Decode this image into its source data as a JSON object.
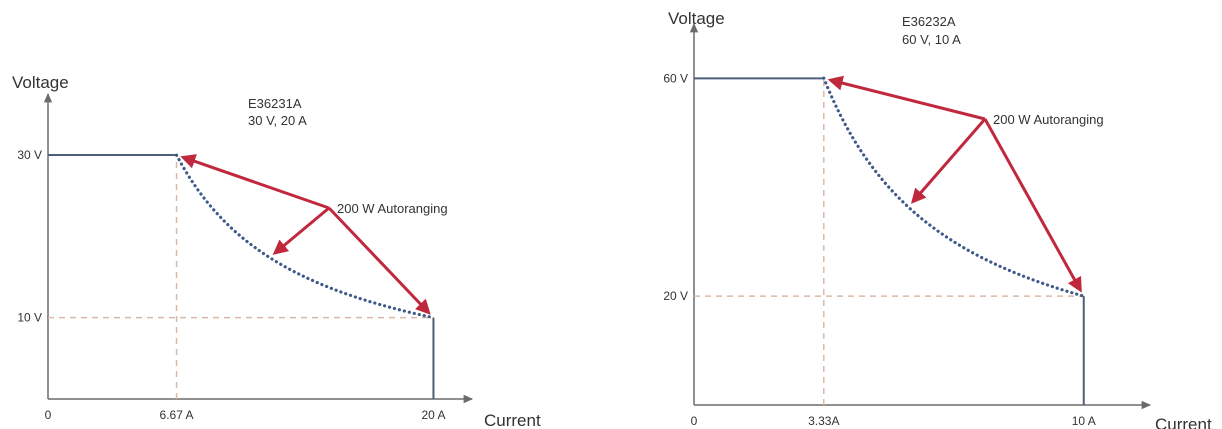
{
  "colors": {
    "axis": "#6b6b6b",
    "curve_solid": "#4f5d78",
    "curve_dotted": "#3f5a8a",
    "guide": "#d9b9a6",
    "arrow": "#c0283d",
    "text": "#333333"
  },
  "chart_data": [
    {
      "type": "line",
      "model": "E36231A",
      "rating": "30 V, 20 A",
      "xlabel": "Current",
      "ylabel": "Voltage",
      "annotation": "200 W Autoranging",
      "xlim": [
        0,
        22
      ],
      "ylim": [
        0,
        37.5
      ],
      "xticks": [
        {
          "value": 0,
          "label": "0"
        },
        {
          "value": 6.67,
          "label": "6.67 A"
        },
        {
          "value": 20,
          "label": "20 A"
        }
      ],
      "yticks": [
        {
          "value": 30,
          "label": "30 V"
        },
        {
          "value": 10,
          "label": "10 V"
        }
      ],
      "power_watts": 200,
      "points": [
        {
          "x": 0,
          "y": 30
        },
        {
          "x": 6.67,
          "y": 30
        },
        {
          "x": 20,
          "y": 10
        },
        {
          "x": 20,
          "y": 0
        }
      ],
      "guides": [
        {
          "from": [
            6.67,
            0
          ],
          "to": [
            6.67,
            30
          ]
        },
        {
          "from": [
            0,
            10
          ],
          "to": [
            20,
            10
          ]
        }
      ],
      "arrow_targets": [
        {
          "x": 6.67,
          "y": 30
        },
        {
          "x": 11.5,
          "y": 17.4
        },
        {
          "x": 20,
          "y": 10
        }
      ]
    },
    {
      "type": "line",
      "model": "E36232A",
      "rating": "60 V, 10 A",
      "xlabel": "Current",
      "ylabel": "Voltage",
      "annotation": "200 W Autoranging",
      "xlim": [
        0,
        11.7
      ],
      "ylim": [
        0,
        70
      ],
      "xticks": [
        {
          "value": 0,
          "label": "0"
        },
        {
          "value": 3.33,
          "label": "3.33A"
        },
        {
          "value": 10,
          "label": "10 A"
        }
      ],
      "yticks": [
        {
          "value": 60,
          "label": "60 V"
        },
        {
          "value": 20,
          "label": "20 V"
        }
      ],
      "power_watts": 200,
      "points": [
        {
          "x": 0,
          "y": 60
        },
        {
          "x": 3.33,
          "y": 60
        },
        {
          "x": 10,
          "y": 20
        },
        {
          "x": 10,
          "y": 0
        }
      ],
      "guides": [
        {
          "from": [
            3.33,
            0
          ],
          "to": [
            3.33,
            60
          ]
        },
        {
          "from": [
            0,
            20
          ],
          "to": [
            10,
            20
          ]
        }
      ],
      "arrow_targets": [
        {
          "x": 3.33,
          "y": 60
        },
        {
          "x": 5.5,
          "y": 36.4
        },
        {
          "x": 10,
          "y": 20
        }
      ]
    }
  ]
}
